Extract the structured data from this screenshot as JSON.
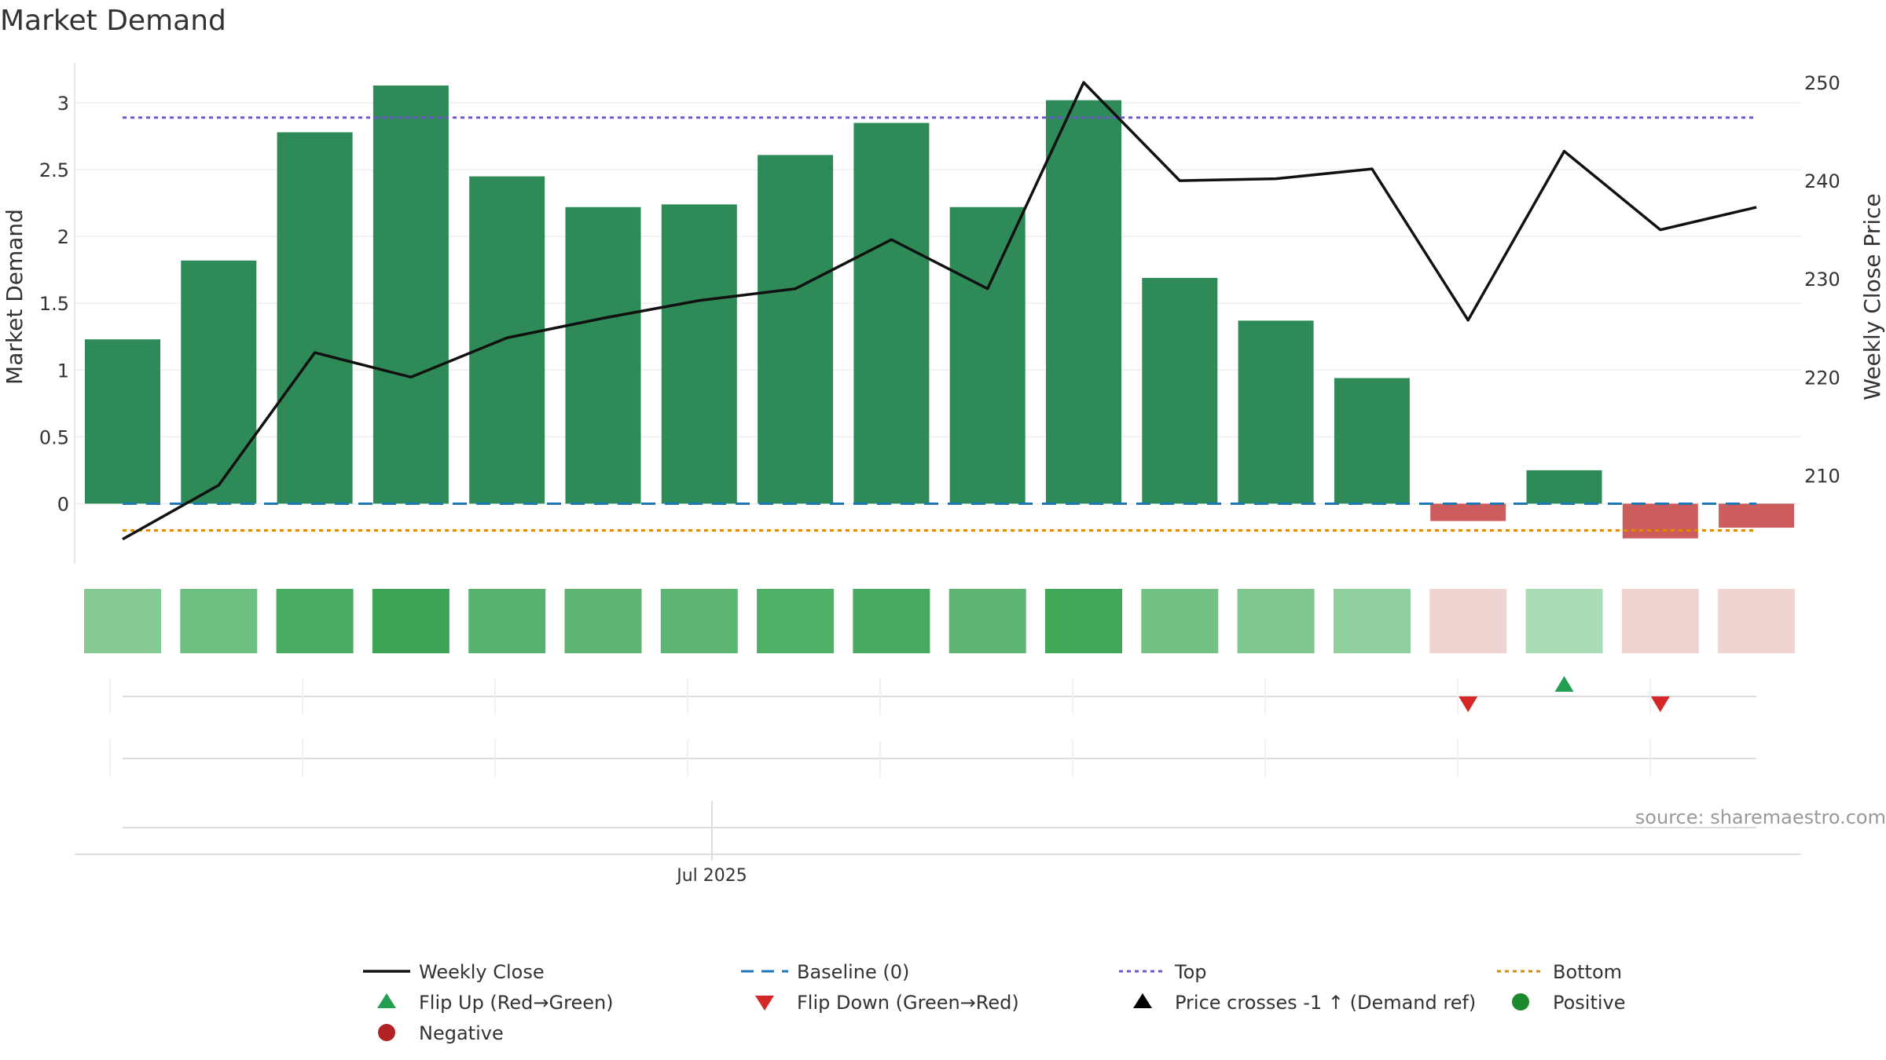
{
  "chart_data": {
    "type": "bar",
    "title": "Market Demand",
    "ylabel": "Market Demand",
    "y2label": "Weekly Close Price",
    "xtick_label": "Jul 2025",
    "source": "source: sharemaestro.com",
    "ylim": [
      -0.45,
      3.3
    ],
    "y2lim": [
      201,
      252
    ],
    "yticks": [
      {
        "value": 0,
        "label": "0"
      },
      {
        "value": 0.5,
        "label": "0.5"
      },
      {
        "value": 1,
        "label": "1"
      },
      {
        "value": 1.5,
        "label": "1.5"
      },
      {
        "value": 2,
        "label": "2"
      },
      {
        "value": 2.5,
        "label": "2.5"
      },
      {
        "value": 3,
        "label": "3"
      }
    ],
    "y2ticks": [
      {
        "value": 210,
        "label": "210"
      },
      {
        "value": 220,
        "label": "220"
      },
      {
        "value": 230,
        "label": "230"
      },
      {
        "value": 240,
        "label": "240"
      },
      {
        "value": 250,
        "label": "250"
      }
    ],
    "demand": [
      1.23,
      1.82,
      2.78,
      3.13,
      2.45,
      2.22,
      2.24,
      2.61,
      2.85,
      2.22,
      3.02,
      1.69,
      1.37,
      0.94,
      -0.13,
      0.25,
      -0.26,
      -0.18
    ],
    "close": [
      203.5,
      209,
      222.5,
      220,
      224,
      226,
      227.8,
      229,
      234,
      229,
      250,
      240,
      240.2,
      241.2,
      225.8,
      243,
      235,
      237.3
    ],
    "top_line": 2.89,
    "baseline": 0,
    "bottom_line": -0.2,
    "flip_down_indices": [
      14,
      16
    ],
    "flip_up_indices": [
      15
    ],
    "colors": {
      "positive_bar": "#2e8b57",
      "negative_bar": "#cd5c5c",
      "close_line": "#111111",
      "baseline": "#1f77b4",
      "top": "#6a5acd",
      "bottom": "#e08a00",
      "flip_up": "#22a050",
      "flip_down": "#d62728",
      "positive_dot": "#1e8a2e",
      "negative_dot": "#b22222"
    },
    "legend": [
      {
        "label": "Weekly Close",
        "kind": "line-solid",
        "color": "#111111"
      },
      {
        "label": "Baseline (0)",
        "kind": "line-dash",
        "color": "#1f77b4"
      },
      {
        "label": "Top",
        "kind": "line-dot",
        "color": "#6a5acd"
      },
      {
        "label": "Bottom",
        "kind": "line-dot",
        "color": "#e08a00"
      },
      {
        "label": "Flip Up (Red→Green)",
        "kind": "tri-up",
        "color": "#22a050"
      },
      {
        "label": "Flip Down (Green→Red)",
        "kind": "tri-down",
        "color": "#d62728"
      },
      {
        "label": "Price crosses -1 ↑ (Demand ref)",
        "kind": "tri-up",
        "color": "#000000"
      },
      {
        "label": "Positive",
        "kind": "dot",
        "color": "#1e8a2e"
      },
      {
        "label": "Negative",
        "kind": "dot",
        "color": "#b22222"
      }
    ]
  }
}
